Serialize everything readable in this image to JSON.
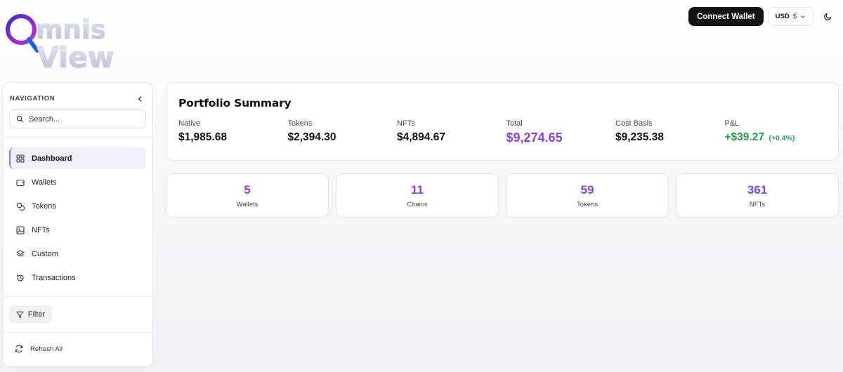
{
  "brand": {
    "name": "OmnisView",
    "logo_line1": "mnis",
    "logo_line2": "View"
  },
  "header": {
    "connect_label": "Connect Wallet",
    "currency_code": "USD",
    "currency_symbol": "$",
    "theme_icon": "moon-icon"
  },
  "sidebar": {
    "title": "NAVIGATION",
    "collapse_icon": "chevron-left-icon",
    "search_placeholder": "Search...",
    "items": [
      {
        "label": "Dashboard",
        "icon": "dashboard-grid-icon",
        "active": true
      },
      {
        "label": "Wallets",
        "icon": "wallet-icon"
      },
      {
        "label": "Tokens",
        "icon": "coins-icon"
      },
      {
        "label": "NFTs",
        "icon": "image-icon"
      },
      {
        "label": "Custom",
        "icon": "layers-icon"
      },
      {
        "label": "Transactions",
        "icon": "history-icon"
      }
    ],
    "filter_label": "Filter",
    "refresh_label": "Refresh All"
  },
  "summary": {
    "title": "Portfolio Summary",
    "metrics": [
      {
        "label": "Native",
        "value": "$1,985.68"
      },
      {
        "label": "Tokens",
        "value": "$2,394.30"
      },
      {
        "label": "NFTs",
        "value": "$4,894.67"
      },
      {
        "label": "Total",
        "value": "$9,274.65"
      },
      {
        "label": "Cost Basis",
        "value": "$9,235.38"
      },
      {
        "label": "P&L",
        "value": "+$39.27",
        "pct": "(+0.4%)"
      }
    ]
  },
  "stats": [
    {
      "value": "5",
      "label": "Wallets"
    },
    {
      "value": "11",
      "label": "Chains"
    },
    {
      "value": "59",
      "label": "Tokens"
    },
    {
      "value": "361",
      "label": "NFTs"
    }
  ],
  "colors": {
    "accent": "#8b3fe0",
    "positive": "#1f9d4d",
    "primary_button": "#141414"
  }
}
